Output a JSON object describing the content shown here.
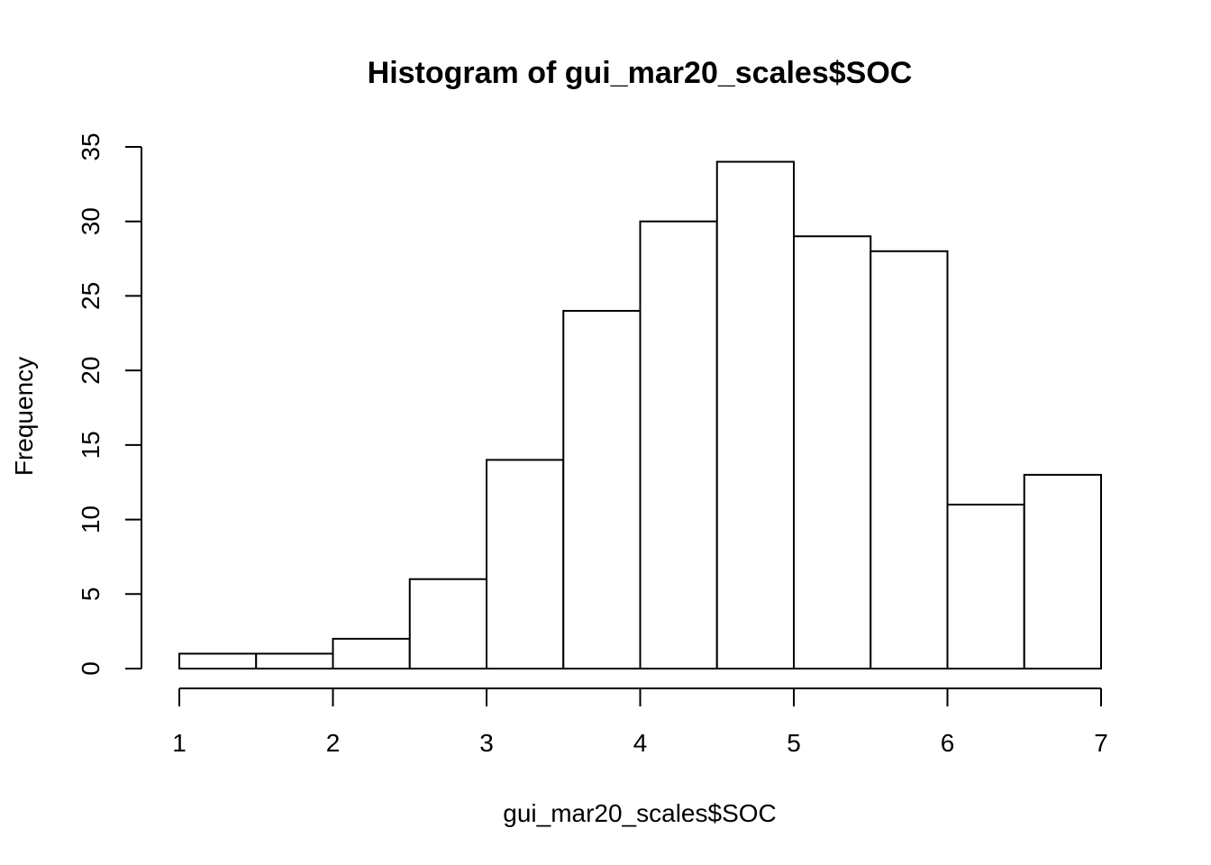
{
  "chart_data": {
    "type": "bar",
    "title": "Histogram of gui_mar20_scales$SOC",
    "xlabel": "gui_mar20_scales$SOC",
    "ylabel": "Frequency",
    "bin_edges": [
      1,
      1.5,
      2,
      2.5,
      3,
      3.5,
      4,
      4.5,
      5,
      5.5,
      6,
      6.5,
      7
    ],
    "values": [
      1,
      1,
      2,
      6,
      14,
      24,
      30,
      34,
      29,
      28,
      11,
      13
    ],
    "xlim": [
      1,
      7
    ],
    "ylim": [
      0,
      35
    ],
    "x_ticks": [
      1,
      2,
      3,
      4,
      5,
      6,
      7
    ],
    "y_ticks": [
      0,
      5,
      10,
      15,
      20,
      25,
      30,
      35
    ],
    "grid": false,
    "bar_fill": "#ffffff",
    "bar_stroke": "#000000"
  }
}
